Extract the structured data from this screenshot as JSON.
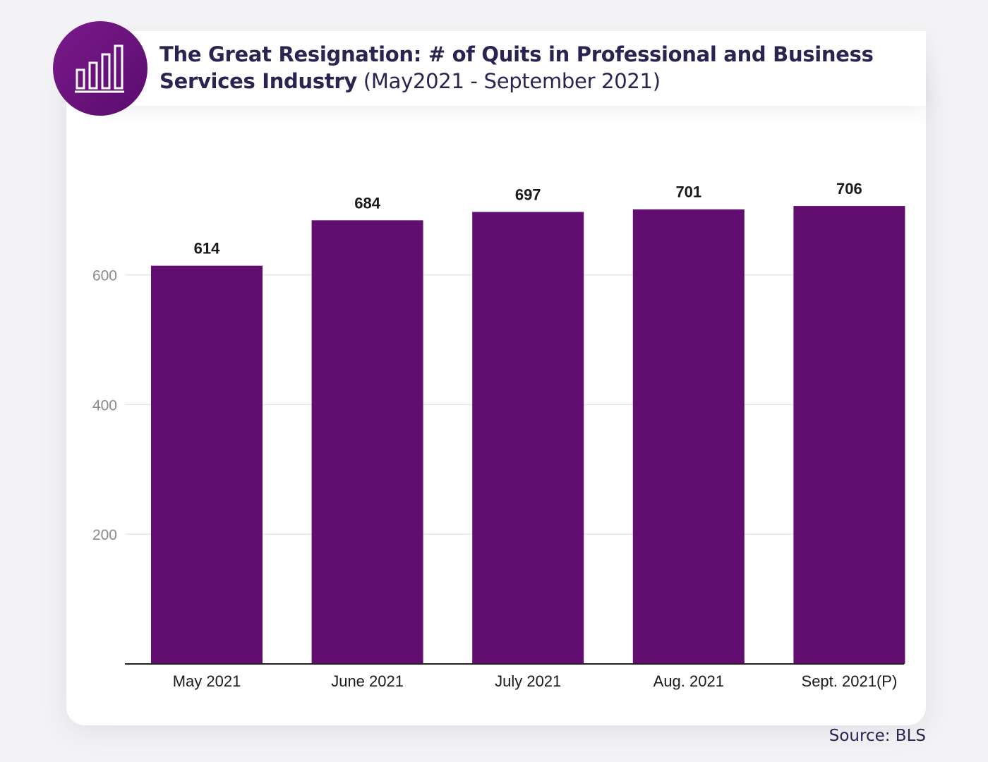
{
  "header": {
    "title_main": "The Great Resignation: # of Quits in  Professional and Business Services Industry",
    "title_sub": "(May2021 - September 2021)",
    "logo_icon": "bar-chart-icon"
  },
  "footer": {
    "source": "Source: BLS"
  },
  "colors": {
    "bar": "#620d70",
    "logo": "#6a127c",
    "gridline": "#e6e6e6",
    "axis": "#222222"
  },
  "chart_data": {
    "type": "bar",
    "title": "The Great Resignation: # of Quits in  Professional and Business Services Industry (May2021 - September 2021)",
    "categories": [
      "May 2021",
      "June 2021",
      "July 2021",
      "Aug. 2021",
      "Sept. 2021(P)"
    ],
    "values": [
      614,
      684,
      697,
      701,
      706
    ],
    "value_labels": [
      "614",
      "684",
      "697",
      "701",
      "706"
    ],
    "yticks": [
      200,
      400,
      600
    ],
    "ytick_labels": [
      "200",
      "400",
      "600"
    ],
    "ylim": [
      0,
      800
    ],
    "xlabel": "",
    "ylabel": "",
    "grid": true,
    "legend": "none"
  }
}
